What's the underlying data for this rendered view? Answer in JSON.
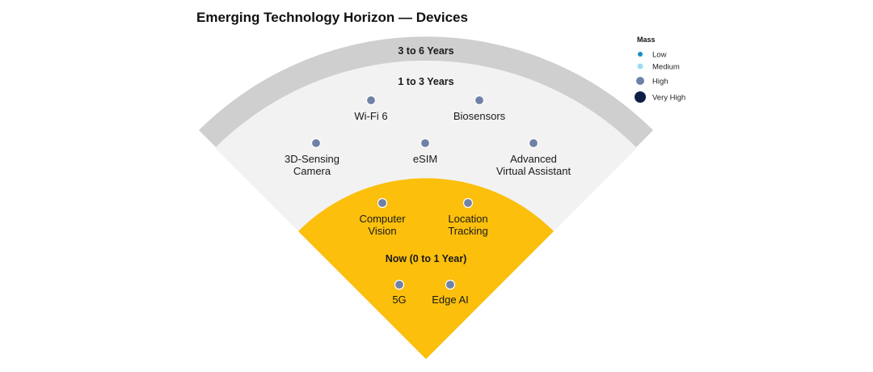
{
  "title": "Emerging Technology Horizon — Devices",
  "colors": {
    "outer_band": "#cfcfcf",
    "middle_band": "#f2f2f2",
    "inner_band": "#fbbf0c",
    "dot_high": "#6f81a6"
  },
  "bands": {
    "outer": "3 to 6 Years",
    "middle": "1 to 3 Years",
    "inner": "Now (0 to 1 Year)"
  },
  "legend": {
    "title": "Mass",
    "items": [
      {
        "label": "Low",
        "color": "#1591c8"
      },
      {
        "label": "Medium",
        "color": "#9cdcf2"
      },
      {
        "label": "High",
        "color": "#6f81a6"
      },
      {
        "label": "Very High",
        "color": "#0d1f47"
      }
    ]
  },
  "technologies": [
    {
      "lines": [
        "Wi-Fi 6"
      ],
      "band": "1 to 3 Years",
      "mass": "High"
    },
    {
      "lines": [
        "Biosensors"
      ],
      "band": "1 to 3 Years",
      "mass": "High"
    },
    {
      "lines": [
        "3D-Sensing",
        "Camera"
      ],
      "band": "1 to 3 Years",
      "mass": "High"
    },
    {
      "lines": [
        "eSIM"
      ],
      "band": "1 to 3 Years",
      "mass": "High"
    },
    {
      "lines": [
        "Advanced",
        "Virtual Assistant"
      ],
      "band": "1 to 3 Years",
      "mass": "High"
    },
    {
      "lines": [
        "Computer",
        "Vision"
      ],
      "band": "Now (0 to 1 Year)",
      "mass": "High"
    },
    {
      "lines": [
        "Location",
        "Tracking"
      ],
      "band": "Now (0 to 1 Year)",
      "mass": "High"
    },
    {
      "lines": [
        "5G"
      ],
      "band": "Now (0 to 1 Year)",
      "mass": "High"
    },
    {
      "lines": [
        "Edge AI"
      ],
      "band": "Now (0 to 1 Year)",
      "mass": "High"
    }
  ]
}
